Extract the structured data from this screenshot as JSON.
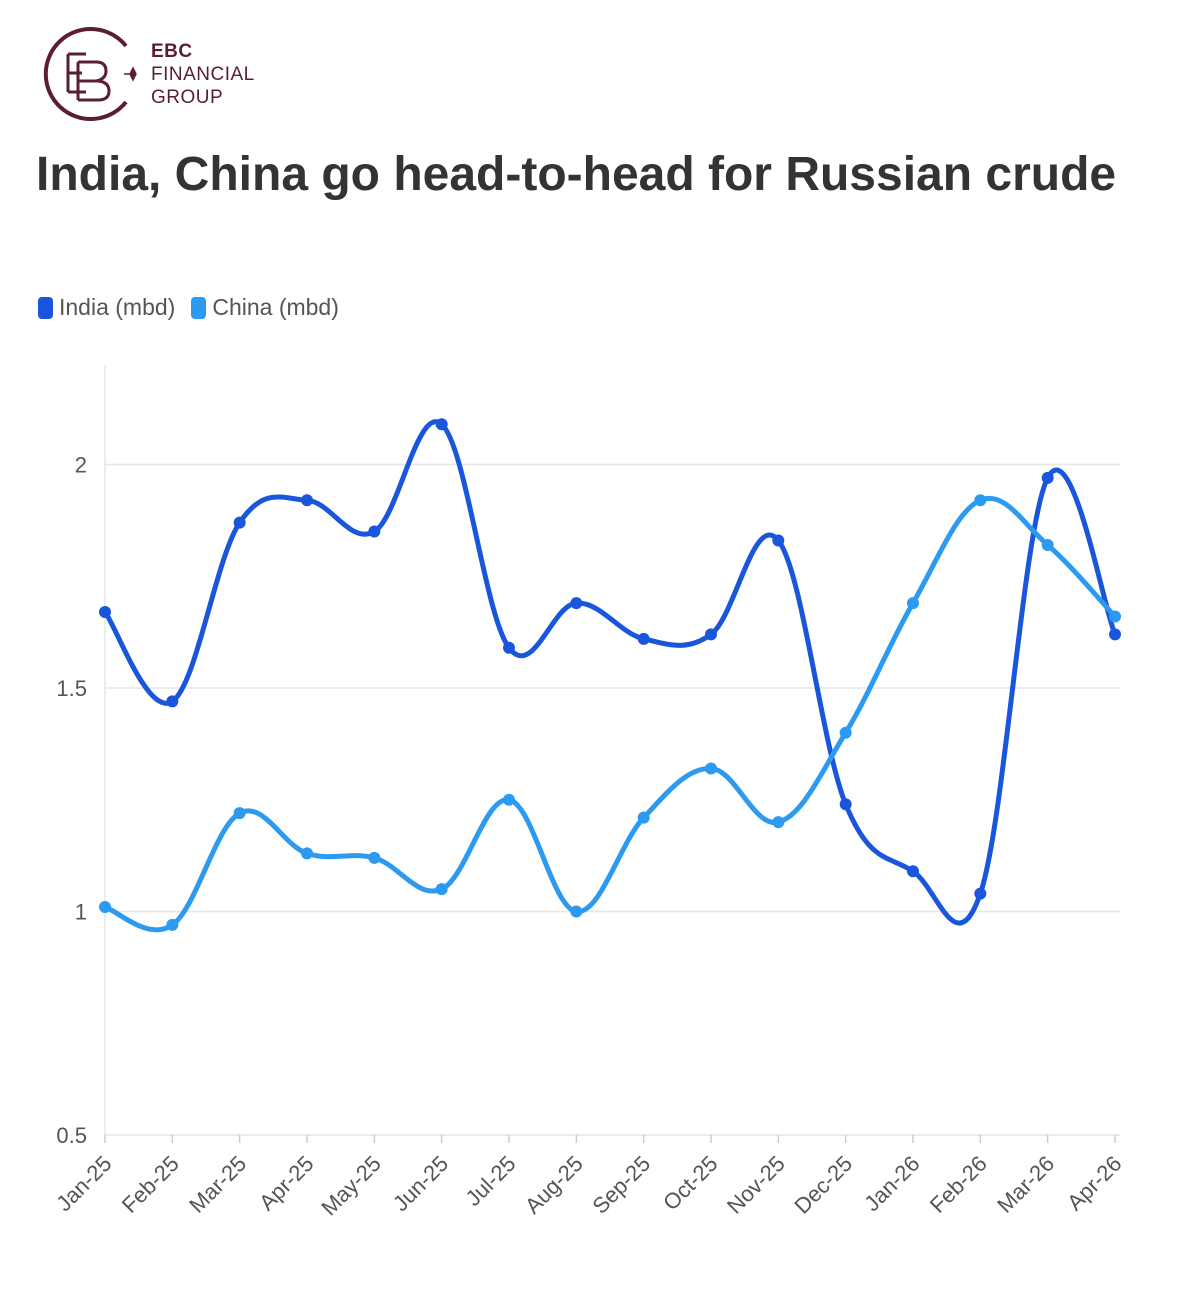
{
  "logo": {
    "line1": "EBC",
    "line2": "FINANCIAL",
    "line3": "GROUP",
    "color": "#5a1f2e"
  },
  "title": "India, China go head-to-head for Russian crude",
  "chart_data": {
    "type": "line",
    "title": "India, China go head-to-head for Russian crude",
    "xlabel": "",
    "ylabel": "",
    "categories": [
      "Jan-25",
      "Feb-25",
      "Mar-25",
      "Apr-25",
      "May-25",
      "Jun-25",
      "Jul-25",
      "Aug-25",
      "Sep-25",
      "Oct-25",
      "Nov-25",
      "Dec-25",
      "Jan-26",
      "Feb-26",
      "Mar-26",
      "Apr-26"
    ],
    "series": [
      {
        "name": "India (mbd)",
        "color": "#1a56db",
        "values": [
          1.67,
          1.47,
          1.87,
          1.92,
          1.85,
          2.09,
          1.59,
          1.69,
          1.61,
          1.62,
          1.83,
          1.24,
          1.09,
          1.04,
          1.97,
          1.62
        ]
      },
      {
        "name": "China (mbd)",
        "color": "#2b9af0",
        "values": [
          1.01,
          0.97,
          1.22,
          1.13,
          1.12,
          1.05,
          1.25,
          1.0,
          1.21,
          1.32,
          1.2,
          1.4,
          1.69,
          1.92,
          1.82,
          1.66
        ]
      }
    ],
    "yticks": [
      "0.5",
      "1",
      "1.5",
      "2"
    ],
    "ylim": [
      0.5,
      2.2
    ],
    "grid": true,
    "legend": "top-left"
  }
}
